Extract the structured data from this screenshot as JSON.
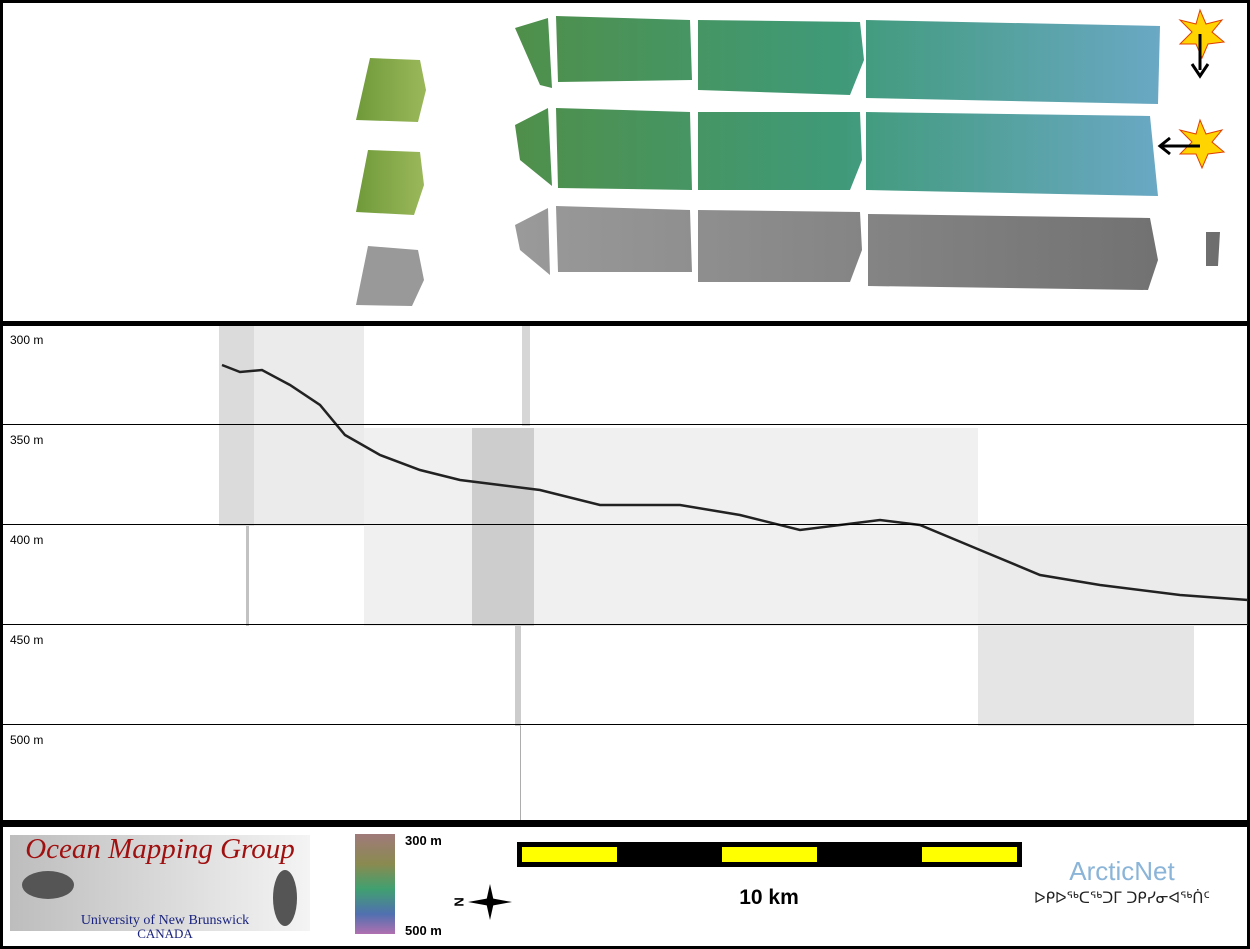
{
  "profile": {
    "depth_labels": [
      "300 m",
      "350 m",
      "400 m",
      "450 m",
      "500 m"
    ]
  },
  "legend": {
    "colorbar_top": "300 m",
    "colorbar_bottom": "500 m",
    "scale": "10 km",
    "north": "N"
  },
  "logos": {
    "omg_title": "Ocean Mapping Group",
    "omg_university": "University of New Brunswick",
    "omg_country": "CANADA",
    "arcticnet": "ArcticNet",
    "arcticnet_inuktitut": "ᐅᑭᐅᖅᑕᖅᑐᒥ ᑐᑭᓯᓂᐊᖅᑏᑦ"
  }
}
